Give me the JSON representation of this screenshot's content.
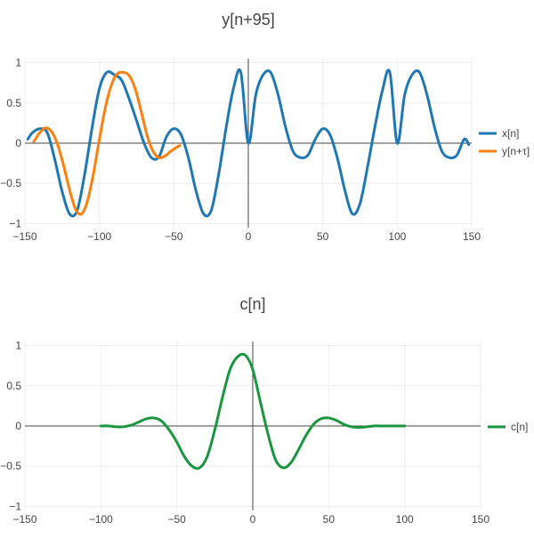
{
  "chart_data": [
    {
      "type": "line",
      "title": "y[n+95]",
      "xlim": [
        -150,
        150
      ],
      "ylim": [
        -1.05,
        1.05
      ],
      "x_ticks": [
        -150,
        -100,
        -50,
        0,
        50,
        100,
        150
      ],
      "y_ticks": [
        1,
        0.5,
        0,
        -0.5,
        -1
      ],
      "x_tick_labels": [
        "−150",
        "−100",
        "−50",
        "0",
        "50",
        "100",
        "150"
      ],
      "y_tick_labels": [
        "1",
        "0.5",
        "0",
        "−0.5",
        "−1"
      ],
      "grid": true,
      "legend_position": "right",
      "series": [
        {
          "name": "x[n]",
          "color": "#1f77b4",
          "x": [
            -148,
            -145,
            -140,
            -135,
            -130,
            -125,
            -120,
            -115,
            -110,
            -105,
            -100,
            -95,
            -90,
            -85,
            -80,
            -75,
            -70,
            -65,
            -60,
            -55,
            -50,
            -45,
            -40,
            -35,
            -30,
            -25,
            -20,
            -15,
            -10,
            -5,
            0,
            5,
            10,
            15,
            20,
            25,
            30,
            35,
            40,
            45,
            50,
            55,
            60,
            65,
            70,
            75,
            80,
            85,
            90,
            95,
            100,
            105,
            110,
            115,
            120,
            125,
            130,
            135,
            140,
            145,
            148
          ],
          "y": [
            0.05,
            0.13,
            0.18,
            0.13,
            -0.2,
            -0.6,
            -0.88,
            -0.84,
            -0.4,
            0.18,
            0.68,
            0.88,
            0.85,
            0.78,
            0.55,
            0.28,
            0.0,
            -0.18,
            -0.17,
            0.08,
            0.18,
            0.1,
            -0.2,
            -0.6,
            -0.88,
            -0.84,
            -0.4,
            0.18,
            0.68,
            0.88,
            0.0,
            0.6,
            0.85,
            0.88,
            0.6,
            0.2,
            -0.1,
            -0.18,
            -0.15,
            0.05,
            0.18,
            0.1,
            -0.2,
            -0.6,
            -0.88,
            -0.75,
            -0.3,
            0.2,
            0.65,
            0.88,
            0.0,
            0.6,
            0.85,
            0.88,
            0.6,
            0.2,
            -0.1,
            -0.18,
            -0.15,
            0.05,
            -0.02
          ]
        },
        {
          "name": "y[n+τ]",
          "color": "#ff7f0e",
          "x": [
            -144,
            -140,
            -136,
            -132,
            -128,
            -124,
            -120,
            -116,
            -112,
            -108,
            -104,
            -100,
            -96,
            -92,
            -88,
            -84,
            -80,
            -76,
            -72,
            -68,
            -64,
            -60,
            -56,
            -52,
            -48,
            -46
          ],
          "y": [
            0.02,
            0.13,
            0.19,
            0.14,
            -0.02,
            -0.28,
            -0.58,
            -0.82,
            -0.88,
            -0.72,
            -0.38,
            0.05,
            0.44,
            0.72,
            0.86,
            0.88,
            0.84,
            0.68,
            0.4,
            0.1,
            -0.1,
            -0.18,
            -0.16,
            -0.1,
            -0.05,
            -0.03
          ]
        }
      ]
    },
    {
      "type": "line",
      "title": "c[n]",
      "xlim": [
        -150,
        150
      ],
      "ylim": [
        -1.05,
        1.05
      ],
      "x_ticks": [
        -150,
        -100,
        -50,
        0,
        50,
        100,
        150
      ],
      "y_ticks": [
        1,
        0.5,
        0,
        -0.5,
        -1
      ],
      "x_tick_labels": [
        "−150",
        "−100",
        "−50",
        "0",
        "50",
        "100",
        "150"
      ],
      "y_tick_labels": [
        "1",
        "0.5",
        "0",
        "−0.5",
        "−1"
      ],
      "grid": true,
      "legend_position": "right",
      "series": [
        {
          "name": "c[n]",
          "color": "#1a9641",
          "x": [
            -100,
            -95,
            -90,
            -85,
            -80,
            -75,
            -70,
            -65,
            -60,
            -55,
            -50,
            -45,
            -40,
            -35,
            -30,
            -25,
            -20,
            -15,
            -10,
            -5,
            0,
            5,
            10,
            15,
            20,
            25,
            30,
            35,
            40,
            45,
            50,
            55,
            60,
            65,
            70,
            75,
            80,
            85,
            90,
            95,
            100
          ],
          "y": [
            0.0,
            0.0,
            -0.01,
            -0.01,
            0.01,
            0.05,
            0.09,
            0.1,
            0.06,
            -0.05,
            -0.2,
            -0.38,
            -0.5,
            -0.52,
            -0.38,
            -0.05,
            0.35,
            0.7,
            0.86,
            0.88,
            0.7,
            0.3,
            -0.1,
            -0.42,
            -0.52,
            -0.46,
            -0.3,
            -0.12,
            0.02,
            0.09,
            0.1,
            0.07,
            0.02,
            -0.01,
            -0.02,
            -0.01,
            0.0,
            0.0,
            0.0,
            0.0,
            0.0
          ]
        }
      ]
    }
  ]
}
